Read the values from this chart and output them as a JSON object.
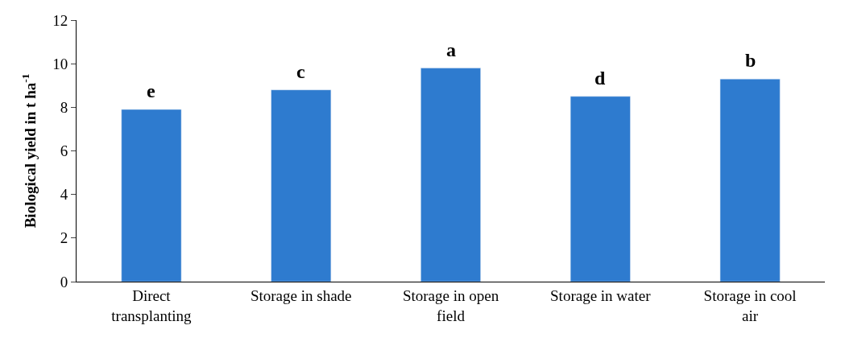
{
  "chart_data": {
    "type": "bar",
    "ylabel": "Biological yield in t ha$^{-1}$",
    "categories": [
      "Direct transplanting",
      "Storage in shade",
      "Storage in open field",
      "Storage in water",
      "Storage in cool air"
    ],
    "values": [
      7.9,
      8.8,
      9.8,
      8.5,
      9.3
    ],
    "color": "#2e7bcf",
    "ylim": [
      0,
      12
    ],
    "yticks": [
      0,
      2,
      4,
      6,
      8,
      10,
      12
    ],
    "annotations": [
      {
        "text": "e",
        "x": "Direct transplanting",
        "y": 7.9
      },
      {
        "text": "c",
        "x": "Storage in shade",
        "y": 8.8
      },
      {
        "text": "a",
        "x": "Storage in open field",
        "y": 9.8
      },
      {
        "text": "d",
        "x": "Storage in water",
        "y": 8.5
      },
      {
        "text": "b",
        "x": "Storage in cool air",
        "y": 9.3
      }
    ]
  }
}
